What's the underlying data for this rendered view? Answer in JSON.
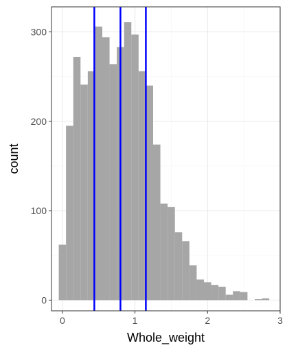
{
  "chart_data": {
    "type": "bar",
    "subtype": "histogram",
    "xlabel": "Whole_weight",
    "ylabel": "count",
    "xlim": [
      -0.15,
      3.0
    ],
    "ylim": [
      -12,
      328
    ],
    "x_ticks": [
      0,
      1,
      2,
      3
    ],
    "y_ticks": [
      0,
      100,
      200,
      300
    ],
    "grid": true,
    "bin_width": 0.1,
    "bins": [
      {
        "x": 0.0,
        "count": 62
      },
      {
        "x": 0.1,
        "count": 195
      },
      {
        "x": 0.2,
        "count": 272
      },
      {
        "x": 0.3,
        "count": 241
      },
      {
        "x": 0.4,
        "count": 256
      },
      {
        "x": 0.5,
        "count": 306
      },
      {
        "x": 0.6,
        "count": 294
      },
      {
        "x": 0.7,
        "count": 264
      },
      {
        "x": 0.8,
        "count": 283
      },
      {
        "x": 0.9,
        "count": 311
      },
      {
        "x": 1.0,
        "count": 297
      },
      {
        "x": 1.1,
        "count": 256
      },
      {
        "x": 1.2,
        "count": 240
      },
      {
        "x": 1.3,
        "count": 174
      },
      {
        "x": 1.4,
        "count": 108
      },
      {
        "x": 1.5,
        "count": 104
      },
      {
        "x": 1.6,
        "count": 76
      },
      {
        "x": 1.7,
        "count": 66
      },
      {
        "x": 1.8,
        "count": 39
      },
      {
        "x": 1.9,
        "count": 23
      },
      {
        "x": 2.0,
        "count": 20
      },
      {
        "x": 2.1,
        "count": 17
      },
      {
        "x": 2.2,
        "count": 15
      },
      {
        "x": 2.3,
        "count": 6
      },
      {
        "x": 2.4,
        "count": 10
      },
      {
        "x": 2.5,
        "count": 9
      },
      {
        "x": 2.6,
        "count": 0
      },
      {
        "x": 2.7,
        "count": 1
      },
      {
        "x": 2.8,
        "count": 2
      }
    ],
    "vlines": [
      0.44,
      0.8,
      1.15
    ],
    "colors": {
      "bar": "#a6a6a6",
      "vline": "#0000ff",
      "grid_major": "#ebebeb",
      "grid_minor": "#f5f5f5",
      "panel_border": "#333333"
    }
  }
}
